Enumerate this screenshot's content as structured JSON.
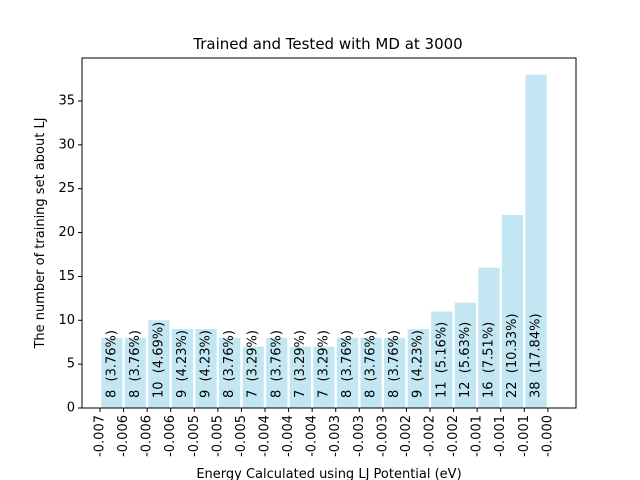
{
  "chart_data": {
    "type": "histogram",
    "title": "Trained and Tested with MD at 3000",
    "xlabel": "Energy Calculated using LJ Potential (eV)",
    "ylabel": "The number of training set about LJ",
    "bins": [
      -0.0067,
      -0.006358,
      -0.006016,
      -0.005674,
      -0.005332,
      -0.00499,
      -0.004648,
      -0.004306,
      -0.003964,
      -0.003622,
      -0.00328,
      -0.002938,
      -0.002596,
      -0.002254,
      -0.001912,
      -0.00157,
      -0.001228,
      -0.000886,
      -0.000544,
      -0.000202
    ],
    "values": [
      8,
      8,
      10,
      9,
      9,
      8,
      7,
      8,
      7,
      7,
      8,
      8,
      8,
      9,
      11,
      12,
      16,
      22,
      38
    ],
    "value_labels": [
      "8  (3.76%)",
      "8  (3.76%)",
      "10  (4.69%)",
      "9  (4.23%)",
      "9  (4.23%)",
      "8  (3.76%)",
      "7  (3.29%)",
      "8  (3.76%)",
      "7  (3.29%)",
      "7  (3.29%)",
      "8  (3.76%)",
      "8  (3.76%)",
      "8  (3.76%)",
      "9  (4.23%)",
      "11  (5.16%)",
      "12  (5.63%)",
      "16  (7.51%)",
      "22  (10.33%)",
      "38  (17.84%)"
    ],
    "color": "#c3e6f3",
    "xlim": [
      -0.006961,
      0.000206
    ],
    "xticks": [
      {
        "value": -0.0067,
        "label": "-0.007"
      },
      {
        "value": -0.006358,
        "label": "-0.006"
      },
      {
        "value": -0.006016,
        "label": "-0.006"
      },
      {
        "value": -0.005674,
        "label": "-0.006"
      },
      {
        "value": -0.005332,
        "label": "-0.005"
      },
      {
        "value": -0.00499,
        "label": "-0.005"
      },
      {
        "value": -0.004648,
        "label": "-0.005"
      },
      {
        "value": -0.004306,
        "label": "-0.004"
      },
      {
        "value": -0.003964,
        "label": "-0.004"
      },
      {
        "value": -0.003622,
        "label": "-0.004"
      },
      {
        "value": -0.00328,
        "label": "-0.003"
      },
      {
        "value": -0.002938,
        "label": "-0.003"
      },
      {
        "value": -0.002596,
        "label": "-0.003"
      },
      {
        "value": -0.002254,
        "label": "-0.002"
      },
      {
        "value": -0.001912,
        "label": "-0.002"
      },
      {
        "value": -0.00157,
        "label": "-0.002"
      },
      {
        "value": -0.001228,
        "label": "-0.001"
      },
      {
        "value": -0.000886,
        "label": "-0.001"
      },
      {
        "value": -0.000544,
        "label": "-0.001"
      },
      {
        "value": -0.000202,
        "label": "-0.000"
      }
    ],
    "ylim": [
      0,
      39.9
    ],
    "yticks": [
      0,
      5,
      10,
      15,
      20,
      25,
      30,
      35
    ]
  }
}
